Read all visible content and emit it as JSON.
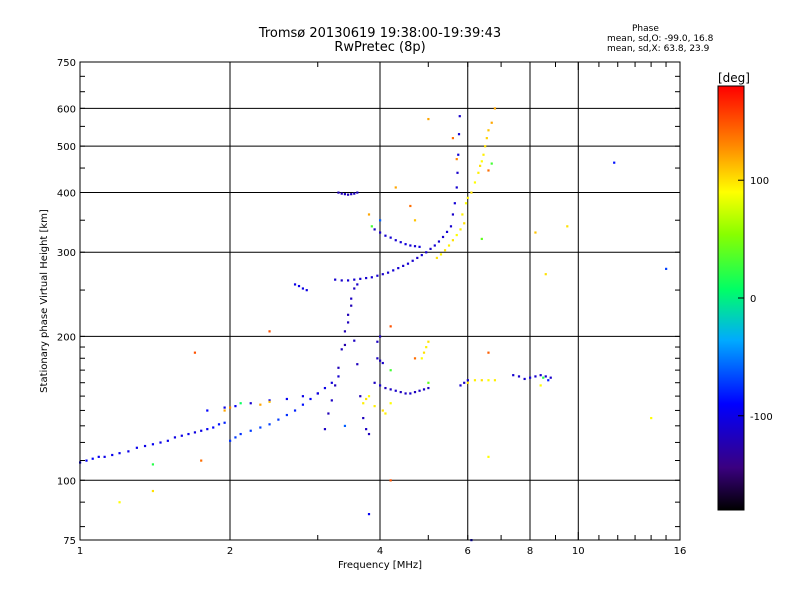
{
  "chart_data": {
    "type": "scatter",
    "title": "Tromsø 20130619 19:38:00-19:39:43",
    "subtitle": "RwPretec (8p)",
    "stats": {
      "heading": "Phase",
      "line1": "mean, sd,O: -99.0, 16.8",
      "line2": "mean, sd,X:  63.8, 23.9"
    },
    "xlabel": "Frequency [MHz]",
    "ylabel": "Stationary phase Virtual Height [km]",
    "x_scale": "log",
    "y_scale": "log",
    "xlim": [
      1,
      16
    ],
    "ylim": [
      75,
      750
    ],
    "x_ticks": [
      1,
      2,
      4,
      6,
      8,
      10,
      16
    ],
    "y_ticks": [
      75,
      100,
      200,
      300,
      400,
      500,
      600,
      750
    ],
    "x_grid": [
      2,
      4,
      6,
      8,
      10
    ],
    "y_grid": [
      100,
      200,
      300,
      400,
      500,
      600
    ],
    "grid": true,
    "colorbar": {
      "label": "[deg]",
      "range": [
        -180,
        180
      ],
      "ticks": [
        100,
        0,
        -100
      ]
    },
    "series": [
      {
        "values": [
          [
            1.0,
            109,
            -95
          ],
          [
            1.03,
            110,
            -92
          ],
          [
            1.06,
            111,
            -90
          ],
          [
            1.09,
            112,
            -95
          ],
          [
            1.12,
            112,
            -100
          ],
          [
            1.16,
            113,
            -98
          ],
          [
            1.2,
            114,
            -97
          ],
          [
            1.25,
            115,
            -100
          ],
          [
            1.3,
            117,
            -98
          ],
          [
            1.35,
            118,
            -100
          ],
          [
            1.4,
            119,
            -95
          ],
          [
            1.45,
            120,
            -100
          ],
          [
            1.5,
            121,
            -98
          ],
          [
            1.55,
            123,
            -102
          ],
          [
            1.6,
            124,
            -100
          ],
          [
            1.65,
            125,
            -98
          ],
          [
            1.7,
            126,
            -103
          ],
          [
            1.75,
            127,
            -100
          ],
          [
            1.8,
            128,
            -95
          ],
          [
            1.85,
            129,
            -90
          ],
          [
            1.9,
            131,
            -85
          ],
          [
            1.95,
            132,
            -80
          ],
          [
            2.0,
            121,
            -75
          ],
          [
            2.05,
            123,
            -72
          ],
          [
            2.1,
            125,
            -75
          ],
          [
            2.2,
            127,
            -72
          ],
          [
            2.3,
            129,
            -70
          ],
          [
            2.4,
            131,
            -70
          ],
          [
            2.5,
            134,
            -72
          ],
          [
            2.6,
            137,
            -75
          ],
          [
            2.7,
            140,
            -80
          ],
          [
            2.8,
            144,
            -85
          ],
          [
            2.9,
            148,
            -90
          ],
          [
            3.0,
            152,
            -95
          ],
          [
            3.1,
            156,
            -100
          ],
          [
            3.2,
            160,
            -105
          ],
          [
            3.3,
            165,
            -110
          ],
          [
            1.8,
            140,
            -90
          ],
          [
            1.95,
            142,
            -100
          ],
          [
            2.05,
            143,
            -95
          ],
          [
            2.2,
            145,
            -110
          ],
          [
            2.4,
            147,
            -100
          ],
          [
            2.6,
            148,
            -95
          ],
          [
            2.8,
            150,
            -100
          ],
          [
            3.0,
            152,
            -105
          ]
        ]
      },
      {
        "values": [
          [
            3.1,
            128,
            -115
          ],
          [
            3.15,
            138,
            -120
          ],
          [
            3.2,
            147,
            -115
          ],
          [
            3.25,
            158,
            -118
          ],
          [
            3.3,
            172,
            -120
          ],
          [
            3.35,
            188,
            -118
          ],
          [
            3.4,
            205,
            -122
          ],
          [
            3.45,
            222,
            -120
          ],
          [
            3.5,
            240,
            -115
          ],
          [
            3.55,
            252,
            -118
          ],
          [
            3.6,
            257,
            -112
          ],
          [
            3.4,
            192,
            -125
          ],
          [
            3.45,
            214,
            -118
          ],
          [
            3.5,
            232,
            -120
          ],
          [
            3.55,
            196,
            -115
          ],
          [
            3.6,
            175,
            -118
          ],
          [
            3.65,
            150,
            -120
          ],
          [
            3.7,
            135,
            -118
          ],
          [
            3.75,
            128,
            -115
          ],
          [
            3.8,
            125,
            -118
          ],
          [
            3.25,
            263,
            -110
          ],
          [
            3.35,
            262,
            -112
          ],
          [
            3.45,
            262,
            -108
          ],
          [
            3.55,
            263,
            -110
          ],
          [
            3.65,
            264,
            -112
          ],
          [
            3.75,
            265,
            -110
          ],
          [
            3.85,
            266,
            -108
          ],
          [
            3.95,
            268,
            -110
          ],
          [
            4.05,
            270,
            -112
          ],
          [
            4.15,
            272,
            -110
          ],
          [
            4.25,
            275,
            -108
          ],
          [
            4.35,
            278,
            -110
          ],
          [
            4.45,
            281,
            -112
          ],
          [
            4.55,
            284,
            -108
          ],
          [
            4.65,
            288,
            -110
          ],
          [
            4.75,
            292,
            -112
          ],
          [
            4.85,
            296,
            -108
          ],
          [
            4.95,
            300,
            -110
          ],
          [
            5.05,
            305,
            -112
          ],
          [
            5.15,
            310,
            -108
          ],
          [
            5.25,
            316,
            -110
          ],
          [
            5.35,
            323,
            -112
          ],
          [
            5.45,
            331,
            -108
          ],
          [
            5.55,
            340,
            -110
          ],
          [
            5.6,
            360,
            -112
          ],
          [
            5.65,
            380,
            -108
          ],
          [
            5.7,
            410,
            -110
          ],
          [
            5.72,
            440,
            -112
          ],
          [
            5.74,
            480,
            -108
          ],
          [
            5.76,
            530,
            -110
          ],
          [
            5.78,
            578,
            -112
          ],
          [
            3.9,
            335,
            -115
          ],
          [
            4.0,
            330,
            -112
          ],
          [
            4.1,
            325,
            -110
          ],
          [
            4.2,
            322,
            -108
          ],
          [
            4.3,
            318,
            -110
          ],
          [
            4.4,
            315,
            -108
          ],
          [
            4.5,
            312,
            -105
          ],
          [
            4.6,
            310,
            -108
          ],
          [
            4.7,
            309,
            -110
          ],
          [
            4.8,
            308,
            -105
          ],
          [
            3.3,
            400,
            -120
          ],
          [
            3.35,
            398,
            -118
          ],
          [
            3.4,
            397,
            -115
          ],
          [
            3.45,
            396,
            -120
          ],
          [
            3.5,
            397,
            -118
          ],
          [
            3.55,
            398,
            -115
          ],
          [
            3.6,
            400,
            -118
          ],
          [
            2.7,
            257,
            -100
          ],
          [
            2.75,
            255,
            -98
          ],
          [
            2.8,
            252,
            -100
          ],
          [
            2.85,
            250,
            -102
          ],
          [
            3.9,
            160,
            -115
          ],
          [
            4.0,
            158,
            -112
          ],
          [
            4.1,
            156,
            -118
          ],
          [
            4.2,
            155,
            -115
          ],
          [
            4.3,
            154,
            -112
          ],
          [
            4.4,
            153,
            -118
          ],
          [
            4.5,
            152,
            -115
          ],
          [
            4.6,
            152,
            -112
          ],
          [
            4.7,
            153,
            -118
          ],
          [
            4.8,
            154,
            -115
          ],
          [
            4.9,
            155,
            -112
          ],
          [
            5.0,
            156,
            -118
          ],
          [
            3.95,
            180,
            -115
          ],
          [
            4.0,
            178,
            -118
          ],
          [
            4.05,
            176,
            -112
          ],
          [
            3.95,
            195,
            -115
          ],
          [
            4.0,
            200,
            -118
          ],
          [
            5.8,
            158,
            -110
          ],
          [
            5.9,
            160,
            -112
          ],
          [
            6.0,
            162,
            -110
          ],
          [
            7.4,
            166,
            -110
          ],
          [
            7.6,
            165,
            -112
          ],
          [
            7.8,
            163,
            -110
          ],
          [
            8.0,
            164,
            -108
          ],
          [
            8.2,
            165,
            -110
          ],
          [
            8.4,
            166,
            -112
          ],
          [
            8.6,
            165,
            -110
          ],
          [
            8.8,
            164,
            -112
          ],
          [
            6.1,
            75,
            -100
          ],
          [
            3.8,
            85,
            -95
          ]
        ]
      },
      {
        "values": [
          [
            6.2,
            420,
            90
          ],
          [
            6.3,
            440,
            95
          ],
          [
            6.35,
            455,
            100
          ],
          [
            6.4,
            465,
            90
          ],
          [
            6.45,
            480,
            95
          ],
          [
            6.5,
            500,
            100
          ],
          [
            6.55,
            520,
            105
          ],
          [
            6.6,
            540,
            110
          ],
          [
            6.7,
            560,
            120
          ],
          [
            6.8,
            600,
            120
          ],
          [
            6.0,
            390,
            95
          ],
          [
            6.1,
            400,
            100
          ],
          [
            5.95,
            380,
            90
          ],
          [
            5.85,
            360,
            95
          ],
          [
            5.2,
            292,
            100
          ],
          [
            5.3,
            297,
            95
          ],
          [
            5.4,
            303,
            100
          ],
          [
            5.5,
            310,
            95
          ],
          [
            5.6,
            318,
            100
          ],
          [
            5.7,
            326,
            90
          ],
          [
            5.8,
            335,
            95
          ],
          [
            5.9,
            345,
            100
          ],
          [
            4.9,
            185,
            100
          ],
          [
            4.95,
            190,
            95
          ],
          [
            5.0,
            195,
            100
          ],
          [
            4.85,
            180,
            90
          ],
          [
            3.7,
            145,
            95
          ],
          [
            3.75,
            148,
            100
          ],
          [
            3.8,
            150,
            90
          ],
          [
            3.9,
            143,
            95
          ],
          [
            4.05,
            140,
            100
          ],
          [
            4.1,
            138,
            95
          ],
          [
            4.2,
            145,
            90
          ],
          [
            6.0,
            160,
            100
          ],
          [
            6.2,
            162,
            95
          ],
          [
            6.4,
            162,
            100
          ],
          [
            6.6,
            162,
            90
          ],
          [
            6.8,
            162,
            95
          ],
          [
            1.95,
            140,
            120
          ],
          [
            2.0,
            142,
            130
          ],
          [
            2.3,
            144,
            120
          ],
          [
            2.4,
            146,
            110
          ],
          [
            1.4,
            95,
            100
          ],
          [
            1.2,
            90,
            90
          ],
          [
            5.0,
            570,
            120
          ],
          [
            4.7,
            350,
            110
          ],
          [
            8.2,
            330,
            110
          ],
          [
            8.6,
            270,
            100
          ],
          [
            9.5,
            340,
            100
          ],
          [
            14.0,
            135,
            90
          ],
          [
            6.6,
            112,
            90
          ],
          [
            8.4,
            158,
            90
          ]
        ]
      },
      {
        "values": [
          [
            1.7,
            185,
            150
          ],
          [
            1.75,
            110,
            140
          ],
          [
            2.4,
            205,
            150
          ],
          [
            3.8,
            360,
            120
          ],
          [
            4.6,
            375,
            140
          ],
          [
            4.2,
            210,
            150
          ],
          [
            4.3,
            410,
            120
          ],
          [
            6.6,
            445,
            140
          ],
          [
            5.7,
            470,
            130
          ],
          [
            4.7,
            180,
            140
          ],
          [
            4.2,
            100,
            150
          ],
          [
            6.6,
            185,
            145
          ],
          [
            5.6,
            520,
            140
          ]
        ]
      },
      {
        "values": [
          [
            1.4,
            108,
            20
          ],
          [
            2.1,
            145,
            10
          ],
          [
            3.85,
            340,
            30
          ],
          [
            6.4,
            320,
            40
          ],
          [
            6.7,
            460,
            30
          ],
          [
            5.0,
            160,
            40
          ],
          [
            8.5,
            164,
            20
          ],
          [
            4.2,
            170,
            30
          ]
        ]
      },
      {
        "values": [
          [
            11.8,
            462,
            -85
          ],
          [
            15.0,
            277,
            -70
          ],
          [
            8.7,
            162,
            -80
          ],
          [
            3.4,
            130,
            -60
          ],
          [
            4.0,
            350,
            -60
          ]
        ]
      }
    ]
  }
}
